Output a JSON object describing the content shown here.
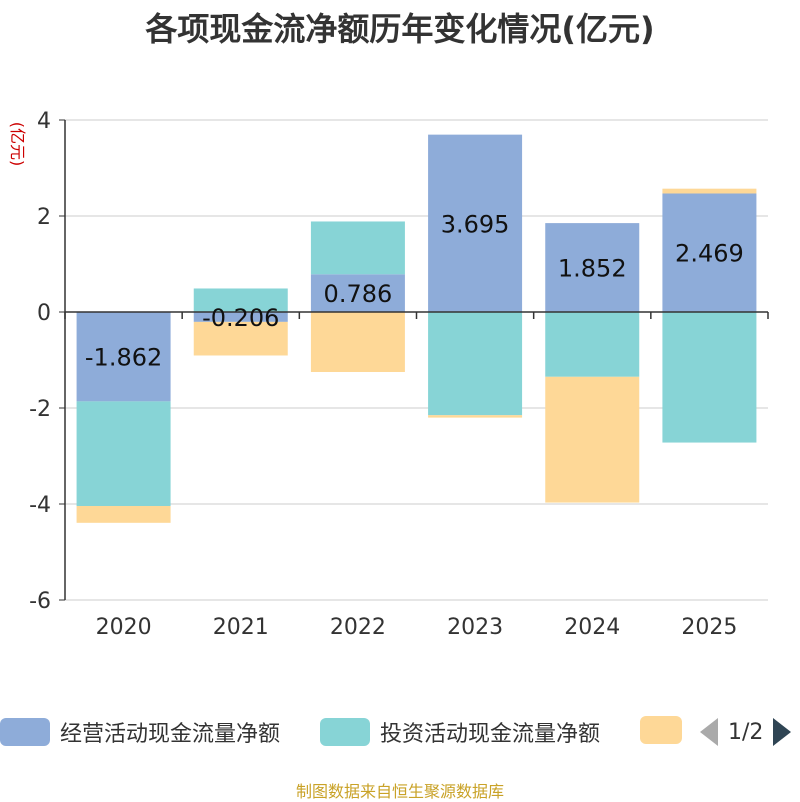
{
  "chart_data": {
    "type": "bar",
    "stacked": true,
    "title": "各项现金流净额历年变化情况(亿元)",
    "ylabel": "(亿元)",
    "xlabel": "",
    "ylim": [
      -6,
      4
    ],
    "yticks": [
      4,
      2,
      0,
      -2,
      -4,
      -6
    ],
    "grid": true,
    "categories": [
      "2020",
      "2021",
      "2022",
      "2023",
      "2024",
      "2025"
    ],
    "series": [
      {
        "name": "经营活动现金流量净额",
        "color": "#8eacd9",
        "values": [
          -1.862,
          -0.206,
          0.786,
          3.695,
          1.852,
          2.469
        ],
        "labels": [
          "-1.862",
          "-0.206",
          "0.786",
          "3.695",
          "1.852",
          "2.469"
        ]
      },
      {
        "name": "投资活动现金流量净额",
        "color": "#87d4d6",
        "values": [
          -2.18,
          0.49,
          1.1,
          -2.15,
          -1.35,
          -2.72
        ]
      },
      {
        "name": "",
        "color": "#fed897",
        "values": [
          -0.35,
          -0.7,
          -1.25,
          -0.05,
          -2.62,
          0.1
        ]
      }
    ],
    "legend_position": "bottom"
  },
  "legend": {
    "page": "1/2"
  },
  "source": "制图数据来自恒生聚源数据库"
}
